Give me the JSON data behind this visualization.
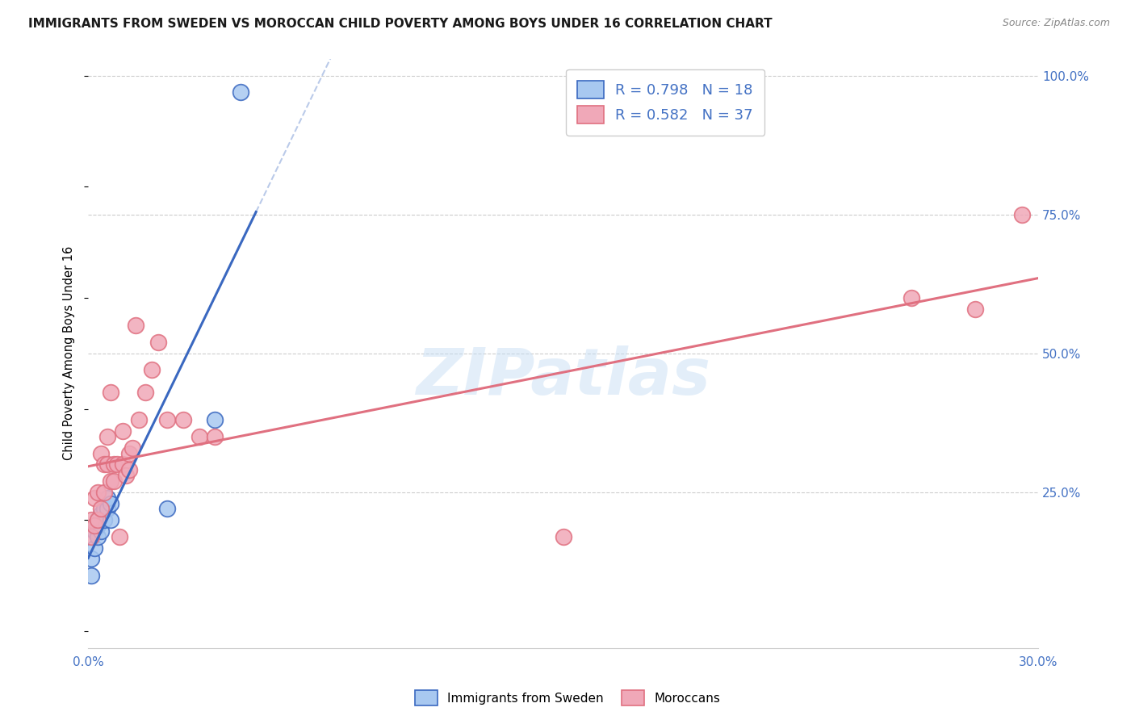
{
  "title": "IMMIGRANTS FROM SWEDEN VS MOROCCAN CHILD POVERTY AMONG BOYS UNDER 16 CORRELATION CHART",
  "source": "Source: ZipAtlas.com",
  "ylabel": "Child Poverty Among Boys Under 16",
  "watermark": "ZIPatlas",
  "legend_r1": "R = 0.798",
  "legend_n1": "N = 18",
  "legend_r2": "R = 0.582",
  "legend_n2": "N = 37",
  "blue_scatter_x": [
    0.001,
    0.001,
    0.002,
    0.002,
    0.003,
    0.003,
    0.003,
    0.004,
    0.004,
    0.005,
    0.005,
    0.006,
    0.006,
    0.007,
    0.007,
    0.025,
    0.04,
    0.048
  ],
  "blue_scatter_y": [
    0.13,
    0.1,
    0.15,
    0.18,
    0.17,
    0.19,
    0.2,
    0.18,
    0.21,
    0.2,
    0.22,
    0.22,
    0.24,
    0.2,
    0.23,
    0.22,
    0.38,
    0.97
  ],
  "pink_scatter_x": [
    0.001,
    0.001,
    0.002,
    0.002,
    0.003,
    0.003,
    0.004,
    0.004,
    0.005,
    0.005,
    0.006,
    0.006,
    0.007,
    0.007,
    0.008,
    0.008,
    0.009,
    0.01,
    0.011,
    0.011,
    0.012,
    0.013,
    0.013,
    0.014,
    0.015,
    0.016,
    0.018,
    0.02,
    0.022,
    0.025,
    0.03,
    0.035,
    0.04,
    0.15,
    0.26,
    0.28,
    0.295
  ],
  "pink_scatter_y": [
    0.17,
    0.2,
    0.19,
    0.24,
    0.2,
    0.25,
    0.22,
    0.32,
    0.25,
    0.3,
    0.3,
    0.35,
    0.27,
    0.43,
    0.27,
    0.3,
    0.3,
    0.17,
    0.3,
    0.36,
    0.28,
    0.29,
    0.32,
    0.33,
    0.55,
    0.38,
    0.43,
    0.47,
    0.52,
    0.38,
    0.38,
    0.35,
    0.35,
    0.17,
    0.6,
    0.58,
    0.75
  ],
  "blue_color": "#a8c8f0",
  "pink_color": "#f0a8b8",
  "blue_line_color": "#3a68c0",
  "pink_line_color": "#e07080",
  "axis_label_color": "#4472c4",
  "grid_color": "#cccccc",
  "title_fontsize": 11,
  "xlim": [
    0.0,
    0.3
  ],
  "ylim": [
    0.0,
    1.0
  ],
  "ytick_vals": [
    0.25,
    0.5,
    0.75,
    1.0
  ],
  "ytick_labels": [
    "25.0%",
    "50.0%",
    "75.0%",
    "100.0%"
  ],
  "xtick_vals": [
    0.0,
    0.05,
    0.1,
    0.15,
    0.2,
    0.25,
    0.3
  ],
  "xtick_labels": [
    "0.0%",
    "",
    "",
    "",
    "",
    "",
    "30.0%"
  ],
  "blue_regline_x": [
    0.0,
    0.053
  ],
  "blue_dashline_x": [
    0.053,
    0.18
  ],
  "pink_regline_x": [
    0.0,
    0.3
  ]
}
